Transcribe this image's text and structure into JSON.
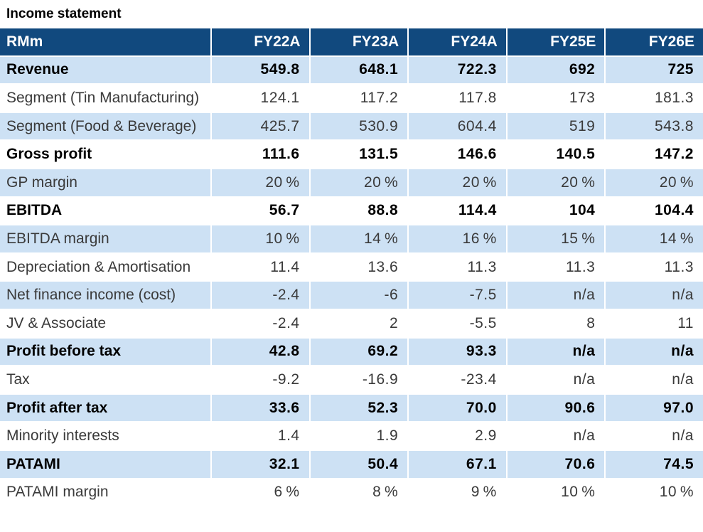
{
  "page": {
    "title": "Income statement"
  },
  "colors": {
    "page_bg": "#FFFFFF",
    "header_bg": "#11497E",
    "header_text": "#FFFFFF",
    "row_alt_bg": "#CDE1F4",
    "bold_text": "#000000",
    "body_text": "#3A3A3A"
  },
  "table": {
    "unit_label": "RMm",
    "columns": [
      "FY22A",
      "FY23A",
      "FY24A",
      "FY25E",
      "FY26E"
    ],
    "rows": [
      {
        "label": "Revenue",
        "bold": true,
        "values": [
          "549.8",
          "648.1",
          "722.3",
          "692",
          "725"
        ]
      },
      {
        "label": "Segment (Tin Manufacturing)",
        "bold": false,
        "values": [
          "124.1",
          "117.2",
          "117.8",
          "173",
          "181.3"
        ]
      },
      {
        "label": "Segment (Food & Beverage)",
        "bold": false,
        "values": [
          "425.7",
          "530.9",
          "604.4",
          "519",
          "543.8"
        ]
      },
      {
        "label": "Gross profit",
        "bold": true,
        "values": [
          "111.6",
          "131.5",
          "146.6",
          "140.5",
          "147.2"
        ]
      },
      {
        "label": "GP margin",
        "bold": false,
        "values": [
          "20 %",
          "20 %",
          "20 %",
          "20 %",
          "20 %"
        ]
      },
      {
        "label": "EBITDA",
        "bold": true,
        "values": [
          "56.7",
          "88.8",
          "114.4",
          "104",
          "104.4"
        ]
      },
      {
        "label": "EBITDA margin",
        "bold": false,
        "values": [
          "10 %",
          "14 %",
          "16 %",
          "15 %",
          "14 %"
        ]
      },
      {
        "label": "Depreciation & Amortisation",
        "bold": false,
        "values": [
          "11.4",
          "13.6",
          "11.3",
          "11.3",
          "11.3"
        ]
      },
      {
        "label": "Net finance income (cost)",
        "bold": false,
        "values": [
          "-2.4",
          "-6",
          "-7.5",
          "n/a",
          "n/a"
        ]
      },
      {
        "label": "JV & Associate",
        "bold": false,
        "values": [
          "-2.4",
          "2",
          "-5.5",
          "8",
          "11"
        ]
      },
      {
        "label": "Profit before tax",
        "bold": true,
        "values": [
          "42.8",
          "69.2",
          "93.3",
          "n/a",
          "n/a"
        ]
      },
      {
        "label": "Tax",
        "bold": false,
        "values": [
          "-9.2",
          "-16.9",
          "-23.4",
          "n/a",
          "n/a"
        ]
      },
      {
        "label": "Profit after tax",
        "bold": true,
        "values": [
          "33.6",
          "52.3",
          "70.0",
          "90.6",
          "97.0"
        ]
      },
      {
        "label": "Minority interests",
        "bold": false,
        "values": [
          "1.4",
          "1.9",
          "2.9",
          "n/a",
          "n/a"
        ]
      },
      {
        "label": "PATAMI",
        "bold": true,
        "values": [
          "32.1",
          "50.4",
          "67.1",
          "70.6",
          "74.5"
        ]
      },
      {
        "label": "PATAMI margin",
        "bold": false,
        "values": [
          "6 %",
          "8 %",
          "9 %",
          "10 %",
          "10 %"
        ]
      }
    ]
  }
}
